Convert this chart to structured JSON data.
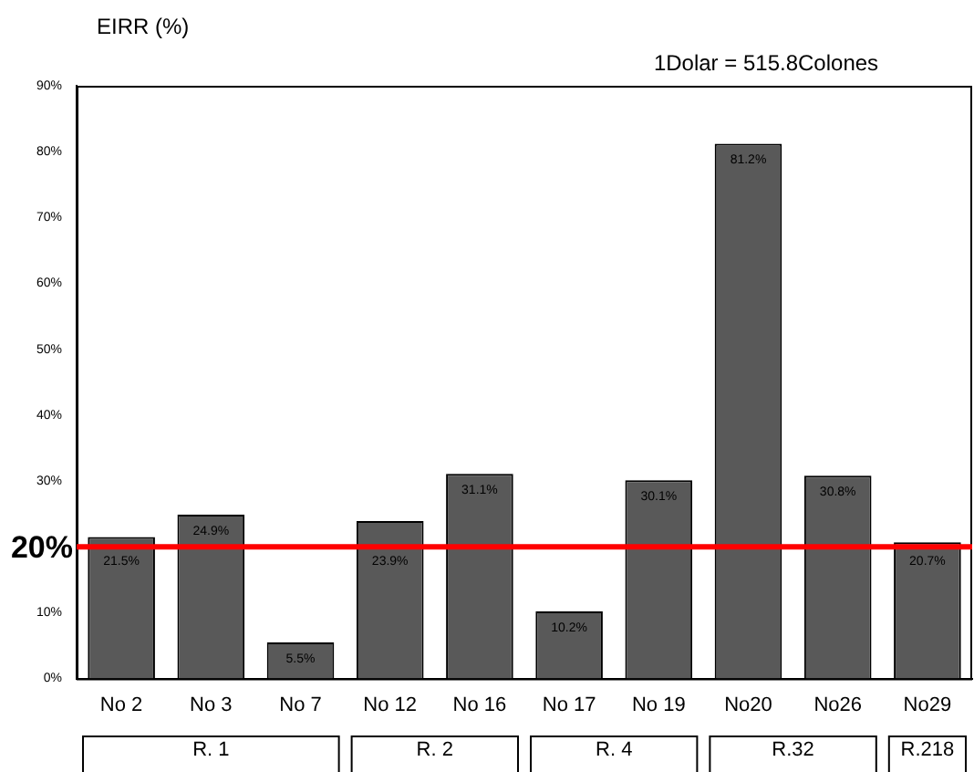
{
  "chart_data": {
    "type": "bar",
    "ylabel": "EIRR (%)",
    "categories": [
      "No 2",
      "No 3",
      "No 7",
      "No 12",
      "No 16",
      "No 17",
      "No 19",
      "No20",
      "No26",
      "No29"
    ],
    "values": [
      21.5,
      24.9,
      5.5,
      23.9,
      31.1,
      10.2,
      30.1,
      81.2,
      30.8,
      20.7
    ],
    "value_labels": [
      "21.5%",
      "24.9%",
      "5.5%",
      "23.9%",
      "31.1%",
      "10.2%",
      "30.1%",
      "81.2%",
      "30.8%",
      "20.7%"
    ],
    "color": "#595959",
    "ylim": [
      0,
      90
    ],
    "yticks": [
      {
        "value": 0,
        "label": "0%"
      },
      {
        "value": 10,
        "label": "10%"
      },
      {
        "value": 20,
        "label": null
      },
      {
        "value": 30,
        "label": "30%"
      },
      {
        "value": 40,
        "label": "40%"
      },
      {
        "value": 50,
        "label": "50%"
      },
      {
        "value": 60,
        "label": "60%"
      },
      {
        "value": 70,
        "label": "70%"
      },
      {
        "value": 80,
        "label": "80%"
      },
      {
        "value": 90,
        "label": "90%"
      }
    ],
    "grid": false,
    "legend": false,
    "ref_lines": [
      {
        "axis": "y",
        "value": 20,
        "label": "20%",
        "color": "#ff0000"
      }
    ],
    "annotations": [
      "1Dolar = 515.8Colones",
      "R. 1",
      "R. 2",
      "R. 4",
      "R.32",
      "R.218"
    ]
  }
}
